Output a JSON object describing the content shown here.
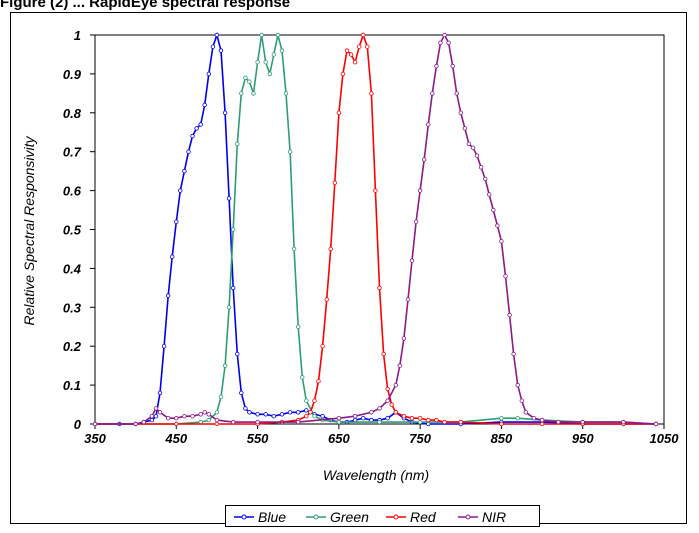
{
  "title_text": "Figure (2) ... RapidEye spectral response",
  "chart_data": {
    "type": "line",
    "xlabel": "Wavelength (nm)",
    "ylabel": "Relative Spectral Responsivity",
    "xlim": [
      350,
      1050
    ],
    "ylim": [
      0,
      1
    ],
    "x_ticks": [
      "350",
      "450",
      "550",
      "650",
      "750",
      "850",
      "950",
      "1050"
    ],
    "y_ticks": [
      "0",
      "0.1",
      "0.2",
      "0.3",
      "0.4",
      "0.5",
      "0.6",
      "0.7",
      "0.8",
      "0.9",
      "1"
    ],
    "grid": false,
    "legend_position": "bottom",
    "series": [
      {
        "name": "Blue",
        "color": "#0000ee",
        "points": [
          [
            350,
            0
          ],
          [
            380,
            0
          ],
          [
            400,
            0
          ],
          [
            410,
            0.005
          ],
          [
            420,
            0.01
          ],
          [
            425,
            0.02
          ],
          [
            430,
            0.08
          ],
          [
            435,
            0.2
          ],
          [
            440,
            0.33
          ],
          [
            445,
            0.43
          ],
          [
            450,
            0.52
          ],
          [
            455,
            0.6
          ],
          [
            460,
            0.65
          ],
          [
            465,
            0.7
          ],
          [
            470,
            0.74
          ],
          [
            475,
            0.76
          ],
          [
            480,
            0.77
          ],
          [
            485,
            0.82
          ],
          [
            490,
            0.9
          ],
          [
            495,
            0.97
          ],
          [
            500,
            1.0
          ],
          [
            505,
            0.96
          ],
          [
            510,
            0.8
          ],
          [
            515,
            0.58
          ],
          [
            520,
            0.35
          ],
          [
            525,
            0.18
          ],
          [
            530,
            0.08
          ],
          [
            535,
            0.04
          ],
          [
            540,
            0.03
          ],
          [
            550,
            0.025
          ],
          [
            560,
            0.025
          ],
          [
            570,
            0.02
          ],
          [
            580,
            0.025
          ],
          [
            590,
            0.03
          ],
          [
            600,
            0.03
          ],
          [
            610,
            0.035
          ],
          [
            620,
            0.025
          ],
          [
            630,
            0.02
          ],
          [
            640,
            0.01
          ],
          [
            650,
            0.005
          ],
          [
            660,
            0.005
          ],
          [
            670,
            0.01
          ],
          [
            680,
            0.015
          ],
          [
            690,
            0.01
          ],
          [
            700,
            0.01
          ],
          [
            710,
            0.015
          ],
          [
            720,
            0.03
          ],
          [
            730,
            0.015
          ],
          [
            740,
            0.005
          ],
          [
            760,
            0
          ],
          [
            800,
            0
          ],
          [
            850,
            0.005
          ],
          [
            900,
            0.005
          ],
          [
            950,
            0
          ],
          [
            1000,
            0
          ],
          [
            1040,
            0
          ]
        ]
      },
      {
        "name": "Green",
        "color": "#2e9e72",
        "points": [
          [
            350,
            0
          ],
          [
            400,
            0
          ],
          [
            450,
            0
          ],
          [
            480,
            0.005
          ],
          [
            490,
            0.01
          ],
          [
            500,
            0.03
          ],
          [
            505,
            0.07
          ],
          [
            510,
            0.15
          ],
          [
            515,
            0.3
          ],
          [
            520,
            0.5
          ],
          [
            525,
            0.72
          ],
          [
            530,
            0.85
          ],
          [
            535,
            0.89
          ],
          [
            540,
            0.88
          ],
          [
            545,
            0.85
          ],
          [
            550,
            0.93
          ],
          [
            555,
            1.0
          ],
          [
            560,
            0.93
          ],
          [
            565,
            0.9
          ],
          [
            570,
            0.95
          ],
          [
            575,
            1.0
          ],
          [
            580,
            0.96
          ],
          [
            585,
            0.85
          ],
          [
            590,
            0.7
          ],
          [
            595,
            0.45
          ],
          [
            600,
            0.25
          ],
          [
            605,
            0.12
          ],
          [
            610,
            0.06
          ],
          [
            620,
            0.02
          ],
          [
            630,
            0.01
          ],
          [
            650,
            0.005
          ],
          [
            700,
            0.005
          ],
          [
            750,
            0.005
          ],
          [
            800,
            0.005
          ],
          [
            850,
            0.015
          ],
          [
            870,
            0.015
          ],
          [
            900,
            0.01
          ],
          [
            950,
            0.005
          ],
          [
            1000,
            0.005
          ],
          [
            1040,
            0
          ]
        ]
      },
      {
        "name": "Red",
        "color": "#ff0000",
        "points": [
          [
            350,
            0
          ],
          [
            400,
            0
          ],
          [
            450,
            0
          ],
          [
            500,
            0
          ],
          [
            550,
            0
          ],
          [
            580,
            0.005
          ],
          [
            600,
            0.01
          ],
          [
            610,
            0.02
          ],
          [
            615,
            0.03
          ],
          [
            620,
            0.06
          ],
          [
            625,
            0.11
          ],
          [
            630,
            0.2
          ],
          [
            635,
            0.32
          ],
          [
            640,
            0.45
          ],
          [
            645,
            0.62
          ],
          [
            650,
            0.8
          ],
          [
            655,
            0.9
          ],
          [
            660,
            0.96
          ],
          [
            665,
            0.95
          ],
          [
            670,
            0.93
          ],
          [
            675,
            0.97
          ],
          [
            680,
            1.0
          ],
          [
            685,
            0.97
          ],
          [
            690,
            0.85
          ],
          [
            695,
            0.6
          ],
          [
            700,
            0.35
          ],
          [
            705,
            0.18
          ],
          [
            710,
            0.09
          ],
          [
            715,
            0.05
          ],
          [
            720,
            0.03
          ],
          [
            730,
            0.02
          ],
          [
            740,
            0.015
          ],
          [
            750,
            0.015
          ],
          [
            760,
            0.01
          ],
          [
            770,
            0.01
          ],
          [
            780,
            0.005
          ],
          [
            800,
            0.005
          ],
          [
            850,
            0
          ],
          [
            900,
            0
          ],
          [
            950,
            0
          ],
          [
            1000,
            0
          ],
          [
            1040,
            0
          ]
        ]
      },
      {
        "name": "NIR",
        "color": "#8b1a8b",
        "points": [
          [
            350,
            0
          ],
          [
            400,
            0
          ],
          [
            410,
            0.005
          ],
          [
            420,
            0.02
          ],
          [
            425,
            0.04
          ],
          [
            430,
            0.03
          ],
          [
            440,
            0.015
          ],
          [
            450,
            0.015
          ],
          [
            460,
            0.02
          ],
          [
            470,
            0.02
          ],
          [
            480,
            0.025
          ],
          [
            485,
            0.03
          ],
          [
            490,
            0.025
          ],
          [
            500,
            0.01
          ],
          [
            520,
            0.005
          ],
          [
            550,
            0.005
          ],
          [
            600,
            0.005
          ],
          [
            650,
            0.015
          ],
          [
            670,
            0.02
          ],
          [
            690,
            0.03
          ],
          [
            700,
            0.04
          ],
          [
            710,
            0.06
          ],
          [
            720,
            0.1
          ],
          [
            725,
            0.15
          ],
          [
            730,
            0.22
          ],
          [
            735,
            0.32
          ],
          [
            740,
            0.42
          ],
          [
            745,
            0.52
          ],
          [
            750,
            0.6
          ],
          [
            755,
            0.68
          ],
          [
            760,
            0.77
          ],
          [
            765,
            0.85
          ],
          [
            770,
            0.92
          ],
          [
            775,
            0.98
          ],
          [
            780,
            1.0
          ],
          [
            785,
            0.98
          ],
          [
            790,
            0.92
          ],
          [
            795,
            0.85
          ],
          [
            800,
            0.8
          ],
          [
            805,
            0.76
          ],
          [
            810,
            0.72
          ],
          [
            815,
            0.71
          ],
          [
            820,
            0.69
          ],
          [
            825,
            0.66
          ],
          [
            830,
            0.63
          ],
          [
            835,
            0.59
          ],
          [
            840,
            0.55
          ],
          [
            845,
            0.51
          ],
          [
            850,
            0.47
          ],
          [
            855,
            0.38
          ],
          [
            860,
            0.28
          ],
          [
            865,
            0.18
          ],
          [
            870,
            0.1
          ],
          [
            875,
            0.06
          ],
          [
            880,
            0.03
          ],
          [
            890,
            0.015
          ],
          [
            900,
            0.01
          ],
          [
            920,
            0.005
          ],
          [
            950,
            0.005
          ],
          [
            1000,
            0.005
          ],
          [
            1040,
            0
          ]
        ]
      }
    ]
  }
}
